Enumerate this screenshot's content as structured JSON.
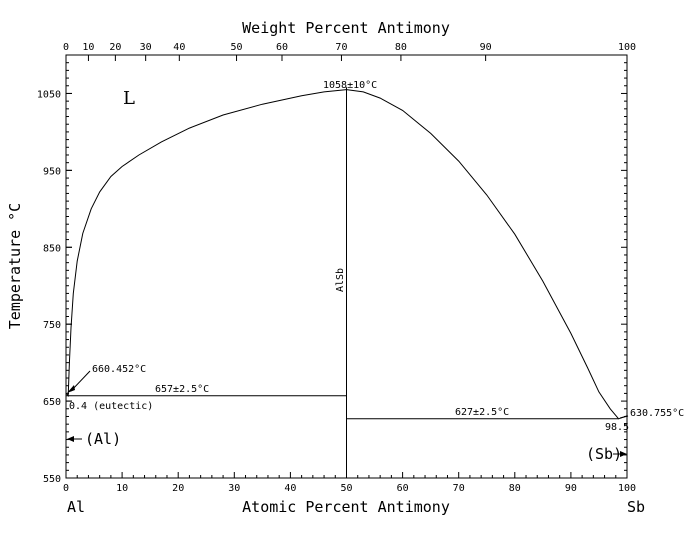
{
  "chart_data": {
    "type": "line",
    "title": "",
    "top_axis_title": "Weight Percent Antimony",
    "xlabel": "Atomic Percent Antimony",
    "ylabel": "Temperature °C",
    "xlim": [
      0,
      100
    ],
    "ylim": [
      550,
      1100
    ],
    "x_ticks": [
      0,
      10,
      20,
      30,
      40,
      50,
      60,
      70,
      80,
      90,
      100
    ],
    "y_ticks": [
      550,
      650,
      750,
      850,
      950,
      1050
    ],
    "top_ticks": [
      "0",
      "10",
      "20",
      "30",
      "40",
      "50",
      "60",
      "70",
      "80",
      "90",
      "100"
    ],
    "top_tick_positions_at": [
      0,
      4.0,
      8.8,
      14.2,
      20.2,
      30.4,
      38.5,
      49.1,
      59.7,
      74.8,
      100
    ],
    "x_left_label": "Al",
    "x_right_label": "Sb",
    "series": [
      {
        "name": "liquidus-al-side",
        "x": [
          0,
          0.4,
          0.6,
          0.9,
          1.3,
          2,
          3,
          4.5,
          6,
          8,
          10,
          13,
          17,
          22,
          28,
          35,
          42,
          46,
          50
        ],
        "y": [
          660.452,
          657,
          700,
          745,
          790,
          832,
          868,
          900,
          922,
          942,
          955,
          970,
          987,
          1005,
          1022,
          1036,
          1047,
          1052,
          1055
        ]
      },
      {
        "name": "liquidus-sb-side",
        "x": [
          50,
          53,
          56,
          60,
          65,
          70,
          75,
          80,
          85,
          90,
          93,
          95,
          97,
          98.5,
          100
        ],
        "y": [
          1055,
          1052,
          1044,
          1028,
          998,
          962,
          918,
          867,
          806,
          738,
          693,
          662,
          640,
          627,
          630.755
        ]
      }
    ],
    "horizontal_lines": [
      {
        "name": "al-eutectic",
        "y": 657,
        "x": [
          0,
          50
        ]
      },
      {
        "name": "sb-eutectic",
        "y": 627,
        "x": [
          50,
          98.5
        ]
      }
    ],
    "vertical_lines": [
      {
        "name": "alsb-compound",
        "x": 50,
        "y": [
          550,
          1058
        ]
      }
    ],
    "annotations": {
      "liquid": "L",
      "compound": "AlSb",
      "compound_melt": "1058±10°C",
      "al_melt": "660.452°C",
      "al_eutectic_temp": "657±2.5°C",
      "al_eutectic_comp": "0.4 (eutectic)",
      "sb_eutectic_temp": "627±2.5°C",
      "sb_eutectic_comp": "98.5",
      "sb_melt": "630.755°C",
      "al_phase": "(Al)",
      "sb_phase": "(Sb)"
    },
    "grid": false,
    "legend": "none"
  }
}
